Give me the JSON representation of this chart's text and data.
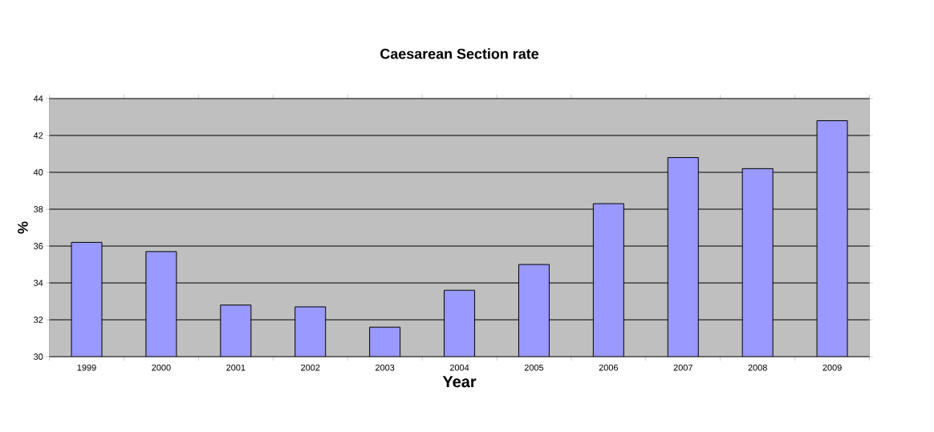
{
  "chart_data": {
    "type": "bar",
    "title": "Caesarean Section rate",
    "xlabel": "Year",
    "ylabel": "%",
    "categories": [
      "1999",
      "2000",
      "2001",
      "2002",
      "2003",
      "2004",
      "2005",
      "2006",
      "2007",
      "2008",
      "2009"
    ],
    "values": [
      36.2,
      35.7,
      32.8,
      32.7,
      31.6,
      33.6,
      35.0,
      38.3,
      40.8,
      40.2,
      42.8
    ],
    "color": "#9999ff",
    "ylim": [
      30,
      44
    ],
    "yticks": [
      30,
      32,
      34,
      36,
      38,
      40,
      42,
      44
    ],
    "grid": "y"
  }
}
